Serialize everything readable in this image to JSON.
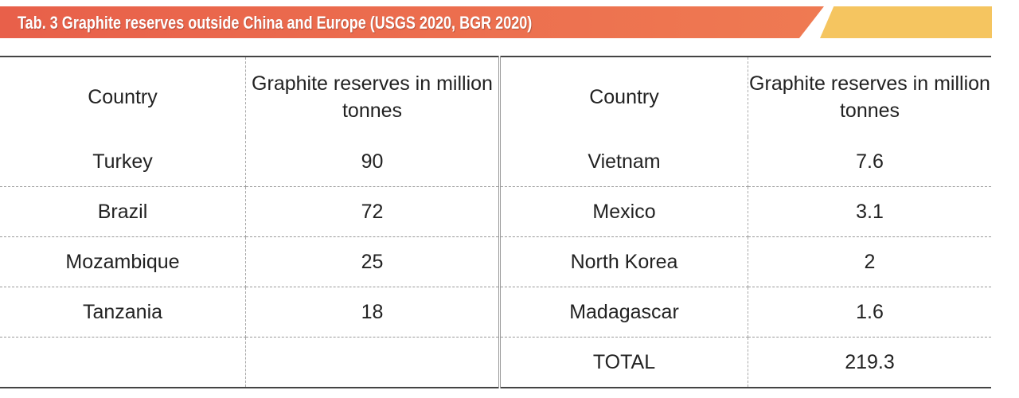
{
  "title": "Tab. 3   Graphite reserves outside China and Europe (USGS 2020, BGR 2020)",
  "colors": {
    "banner": "#ec6a4e",
    "accent": "#f5c560"
  },
  "headers": [
    "Country",
    "Graphite reserves in million tonnes",
    "Country",
    "Graphite reserves in million tonnes"
  ],
  "rows": [
    [
      "Turkey",
      "90",
      "Vietnam",
      "7.6"
    ],
    [
      "Brazil",
      "72",
      "Mexico",
      "3.1"
    ],
    [
      "Mozambique",
      "25",
      "North Korea",
      "2"
    ],
    [
      "Tanzania",
      "18",
      "Madagascar",
      "1.6"
    ],
    [
      "",
      "",
      "TOTAL",
      "219.3"
    ]
  ]
}
